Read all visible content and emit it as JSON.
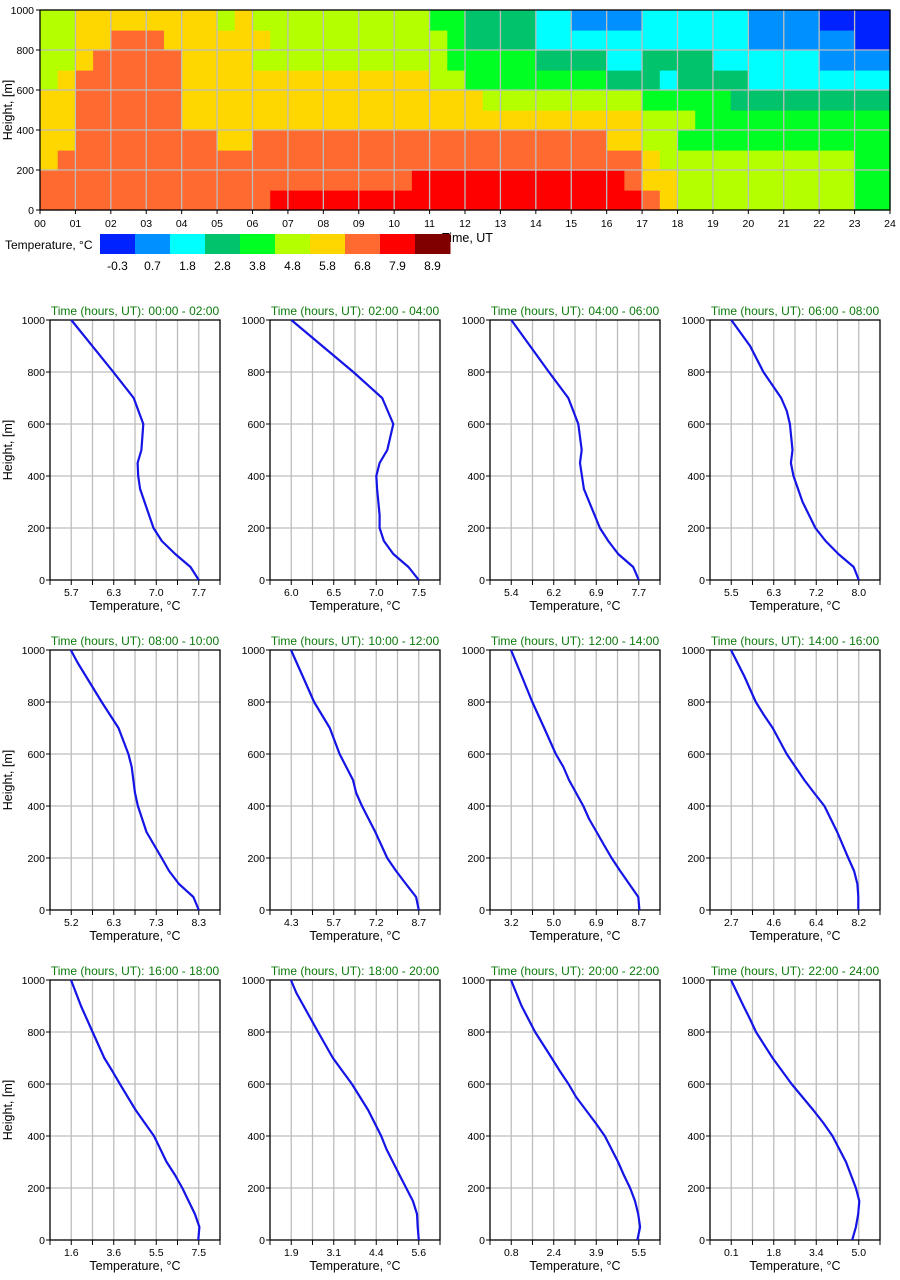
{
  "chart_data": [
    {
      "type": "heatmap",
      "xlabel": "Time, UT",
      "ylabel": "Height, [m]",
      "xlim": [
        0,
        24
      ],
      "ylim": [
        0,
        1000
      ],
      "x_tick_labels": [
        "00",
        "01",
        "02",
        "03",
        "04",
        "05",
        "06",
        "07",
        "08",
        "09",
        "10",
        "11",
        "12",
        "13",
        "14",
        "15",
        "16",
        "17",
        "18",
        "19",
        "20",
        "21",
        "22",
        "23",
        "24"
      ],
      "y_tick_labels": [
        "0",
        "200",
        "400",
        "600",
        "800",
        "1000"
      ],
      "grid": true,
      "cell_time_step_hours": 0.5,
      "cell_height_step_m": 100,
      "colorbar": {
        "label": "Temperature, °C",
        "levels": [
          "-0.3",
          "0.7",
          "1.8",
          "2.8",
          "3.8",
          "4.8",
          "5.8",
          "6.8",
          "7.9",
          "8.9"
        ],
        "colors": [
          "#0022ff",
          "#0090ff",
          "#00ffff",
          "#00c36c",
          "#00ff22",
          "#b4ff00",
          "#ffd700",
          "#ff6a30",
          "#ff0000",
          "#800000"
        ]
      },
      "level_index_rows_bottom_to_top": [
        "777777777777788888888888888888888876555555555544",
        "777777777777777777777888888888888766555555555544",
        "677777777777777777777777777777777765555555555544",
        "667777777766777777777777777777776655444444444444",
        "667777776666666666666666666666666655544444444444",
        "667777776666666666666666655555555544444333333333",
        "567777776666666666666655444444443332333322222222",
        "556777776666555555555554444433332233332222221111",
        "556677766666655555555554333322222222222211111100",
        "556666666656555555555544333322111122222211110000"
      ]
    },
    {
      "type": "line",
      "title_prefix": "Time (hours, UT):",
      "xlabel": "Temperature, °C",
      "ylabel": "Height, [m]",
      "ylim": [
        0,
        1000
      ],
      "y_tick_labels": [
        "0",
        "200",
        "400",
        "600",
        "800",
        "1000"
      ],
      "grid": true,
      "line_color": "#1414e6",
      "panels": [
        {
          "range": "00:00 - 02:00",
          "xticks": [
            "5.7",
            "6.3",
            "7.0",
            "7.7"
          ],
          "points": [
            [
              7.7,
              0
            ],
            [
              7.57,
              50
            ],
            [
              7.33,
              100
            ],
            [
              7.12,
              150
            ],
            [
              6.99,
              200
            ],
            [
              6.78,
              350
            ],
            [
              6.75,
              400
            ],
            [
              6.74,
              450
            ],
            [
              6.8,
              500
            ],
            [
              6.83,
              600
            ],
            [
              6.68,
              700
            ],
            [
              6.36,
              800
            ],
            [
              5.7,
              1000
            ]
          ]
        },
        {
          "range": "02:00 - 04:00",
          "xticks": [
            "6.0",
            "6.5",
            "7.0",
            "7.5"
          ],
          "points": [
            [
              7.5,
              0
            ],
            [
              7.38,
              50
            ],
            [
              7.2,
              100
            ],
            [
              7.09,
              150
            ],
            [
              7.04,
              200
            ],
            [
              7.04,
              250
            ],
            [
              7.01,
              350
            ],
            [
              7.0,
              400
            ],
            [
              7.04,
              450
            ],
            [
              7.13,
              500
            ],
            [
              7.2,
              600
            ],
            [
              7.07,
              700
            ],
            [
              6.73,
              800
            ],
            [
              6.0,
              1000
            ]
          ]
        },
        {
          "range": "04:00 - 06:00",
          "xticks": [
            "5.4",
            "6.2",
            "6.9",
            "7.7"
          ],
          "points": [
            [
              7.7,
              0
            ],
            [
              7.6,
              50
            ],
            [
              7.33,
              100
            ],
            [
              7.15,
              150
            ],
            [
              7.0,
              200
            ],
            [
              6.71,
              350
            ],
            [
              6.64,
              450
            ],
            [
              6.67,
              500
            ],
            [
              6.61,
              600
            ],
            [
              6.43,
              700
            ],
            [
              6.08,
              800
            ],
            [
              5.74,
              900
            ],
            [
              5.4,
              1000
            ]
          ]
        },
        {
          "range": "06:00 - 08:00",
          "xticks": [
            "5.5",
            "6.3",
            "7.2",
            "8.0"
          ],
          "points": [
            [
              8.0,
              0
            ],
            [
              7.9,
              50
            ],
            [
              7.6,
              100
            ],
            [
              7.35,
              150
            ],
            [
              7.15,
              200
            ],
            [
              6.9,
              300
            ],
            [
              6.72,
              400
            ],
            [
              6.67,
              450
            ],
            [
              6.7,
              500
            ],
            [
              6.65,
              600
            ],
            [
              6.59,
              650
            ],
            [
              6.48,
              700
            ],
            [
              6.13,
              800
            ],
            [
              5.87,
              900
            ],
            [
              5.5,
              1000
            ]
          ]
        },
        {
          "range": "08:00 - 10:00",
          "xticks": [
            "5.2",
            "6.3",
            "7.3",
            "8.3"
          ],
          "points": [
            [
              8.3,
              0
            ],
            [
              8.17,
              50
            ],
            [
              7.82,
              100
            ],
            [
              7.58,
              150
            ],
            [
              7.4,
              200
            ],
            [
              7.03,
              300
            ],
            [
              6.82,
              400
            ],
            [
              6.75,
              450
            ],
            [
              6.67,
              550
            ],
            [
              6.59,
              600
            ],
            [
              6.35,
              700
            ],
            [
              5.94,
              800
            ],
            [
              5.36,
              950
            ],
            [
              5.19,
              1000
            ]
          ]
        },
        {
          "range": "10:00 - 12:00",
          "xticks": [
            "4.3",
            "5.7",
            "7.2",
            "8.7"
          ],
          "points": [
            [
              8.7,
              0
            ],
            [
              8.61,
              50
            ],
            [
              8.26,
              100
            ],
            [
              7.92,
              150
            ],
            [
              7.61,
              200
            ],
            [
              7.2,
              300
            ],
            [
              6.74,
              400
            ],
            [
              6.54,
              450
            ],
            [
              6.43,
              500
            ],
            [
              5.97,
              600
            ],
            [
              5.63,
              700
            ],
            [
              5.09,
              800
            ],
            [
              4.69,
              900
            ],
            [
              4.29,
              1000
            ]
          ]
        },
        {
          "range": "12:00 - 14:00",
          "xticks": [
            "3.2",
            "5.0",
            "6.9",
            "8.7"
          ],
          "points": [
            [
              8.73,
              0
            ],
            [
              8.68,
              50
            ],
            [
              7.9,
              150
            ],
            [
              7.53,
              200
            ],
            [
              7.2,
              250
            ],
            [
              6.88,
              300
            ],
            [
              6.56,
              350
            ],
            [
              6.31,
              400
            ],
            [
              5.69,
              500
            ],
            [
              5.45,
              550
            ],
            [
              5.12,
              600
            ],
            [
              4.62,
              700
            ],
            [
              4.11,
              800
            ],
            [
              3.65,
              900
            ],
            [
              3.19,
              1000
            ]
          ]
        },
        {
          "range": "14:00 - 16:00",
          "xticks": [
            "2.7",
            "4.6",
            "6.4",
            "8.2"
          ],
          "points": [
            [
              8.18,
              0
            ],
            [
              8.18,
              50
            ],
            [
              8.14,
              100
            ],
            [
              8.0,
              150
            ],
            [
              7.75,
              200
            ],
            [
              7.27,
              300
            ],
            [
              6.72,
              400
            ],
            [
              6.28,
              450
            ],
            [
              5.85,
              500
            ],
            [
              5.09,
              600
            ],
            [
              4.49,
              700
            ],
            [
              4.11,
              750
            ],
            [
              3.76,
              800
            ],
            [
              3.51,
              850
            ],
            [
              3.26,
              900
            ],
            [
              2.69,
              1000
            ]
          ]
        },
        {
          "range": "16:00 - 18:00",
          "xticks": [
            "1.6",
            "3.6",
            "5.5",
            "7.5"
          ],
          "points": [
            [
              7.48,
              0
            ],
            [
              7.53,
              50
            ],
            [
              7.32,
              100
            ],
            [
              6.74,
              200
            ],
            [
              6.4,
              250
            ],
            [
              6.01,
              300
            ],
            [
              5.43,
              400
            ],
            [
              4.58,
              500
            ],
            [
              3.85,
              600
            ],
            [
              3.5,
              650
            ],
            [
              3.13,
              700
            ],
            [
              2.59,
              800
            ],
            [
              2.05,
              900
            ],
            [
              1.59,
              1000
            ]
          ]
        },
        {
          "range": "18:00 - 20:00",
          "xticks": [
            "1.9",
            "3.1",
            "4.4",
            "5.6"
          ],
          "points": [
            [
              5.6,
              0
            ],
            [
              5.57,
              50
            ],
            [
              5.55,
              100
            ],
            [
              5.43,
              150
            ],
            [
              5.04,
              250
            ],
            [
              4.66,
              350
            ],
            [
              4.51,
              400
            ],
            [
              4.13,
              500
            ],
            [
              3.66,
              600
            ],
            [
              3.11,
              700
            ],
            [
              2.68,
              800
            ],
            [
              2.05,
              950
            ],
            [
              1.89,
              1000
            ]
          ]
        },
        {
          "range": "20:00 - 22:00",
          "xticks": [
            "0.8",
            "2.4",
            "3.9",
            "5.5"
          ],
          "points": [
            [
              5.45,
              0
            ],
            [
              5.55,
              50
            ],
            [
              5.48,
              100
            ],
            [
              5.36,
              150
            ],
            [
              5.18,
              200
            ],
            [
              4.95,
              250
            ],
            [
              4.74,
              300
            ],
            [
              4.25,
              400
            ],
            [
              3.91,
              450
            ],
            [
              3.19,
              550
            ],
            [
              2.91,
              600
            ],
            [
              2.59,
              650
            ],
            [
              2.29,
              700
            ],
            [
              1.68,
              800
            ],
            [
              1.18,
              900
            ],
            [
              0.79,
              1000
            ]
          ]
        },
        {
          "range": "22:00 - 24:00",
          "xticks": [
            "0.1",
            "1.8",
            "3.4",
            "5.0"
          ],
          "points": [
            [
              4.75,
              0
            ],
            [
              4.89,
              50
            ],
            [
              4.98,
              100
            ],
            [
              5.02,
              150
            ],
            [
              4.89,
              200
            ],
            [
              4.51,
              300
            ],
            [
              3.99,
              400
            ],
            [
              3.64,
              450
            ],
            [
              3.25,
              500
            ],
            [
              2.42,
              600
            ],
            [
              1.69,
              700
            ],
            [
              1.05,
              800
            ],
            [
              0.82,
              850
            ],
            [
              0.57,
              900
            ],
            [
              0.09,
              1000
            ]
          ]
        }
      ]
    }
  ]
}
